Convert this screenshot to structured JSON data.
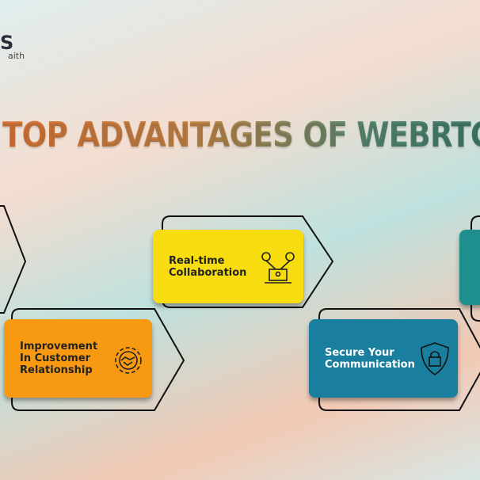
{
  "logo": {
    "mark": "S",
    "tagline": "aith"
  },
  "title": "TOP ADVANTAGES OF WEBRTC",
  "cards": [
    {
      "lines": [
        "Real-time",
        "Collaboration"
      ]
    },
    {
      "lines": [
        "Improvement",
        "In Customer",
        "Relationship"
      ]
    },
    {
      "lines": [
        "Secure Your",
        "Communication"
      ]
    }
  ]
}
